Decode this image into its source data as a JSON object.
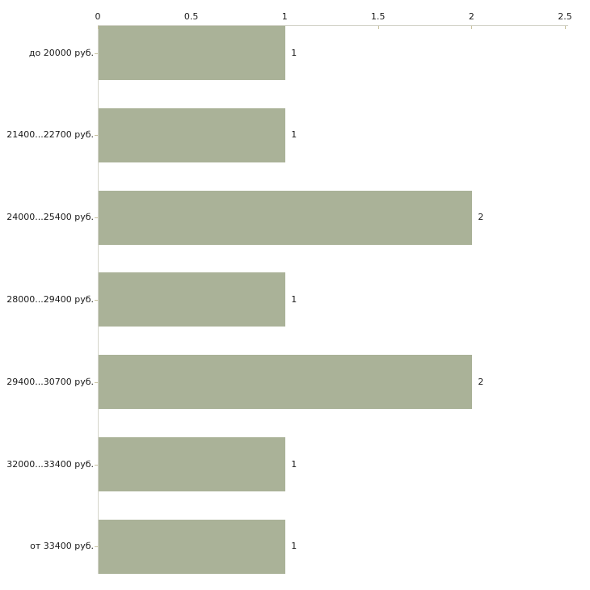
{
  "chart_data": {
    "type": "bar",
    "orientation": "horizontal",
    "title": "",
    "xlabel": "",
    "ylabel": "",
    "categories": [
      "до 20000 руб.",
      "21400...22700 руб.",
      "24000...25400 руб.",
      "28000...29400 руб.",
      "29400...30700 руб.",
      "32000...33400 руб.",
      "от 33400 руб."
    ],
    "values": [
      1,
      1,
      2,
      1,
      2,
      1,
      1
    ],
    "value_labels": [
      "1",
      "1",
      "2",
      "1",
      "2",
      "1",
      "1"
    ],
    "x_ticks": [
      0,
      0.5,
      1,
      1.5,
      2,
      2.5
    ],
    "x_tick_labels": [
      "0",
      "0.5",
      "1",
      "1.5",
      "2",
      "2.5"
    ],
    "xlim": [
      0,
      2.5
    ],
    "axis_position": "top",
    "grid": false,
    "legend": false,
    "bar_color": "#aab298",
    "axis_line_color": "#d4d4ca",
    "tick_color": "#c8c2a0",
    "text_color": "#1a1a1a",
    "background_color": "#ffffff"
  }
}
